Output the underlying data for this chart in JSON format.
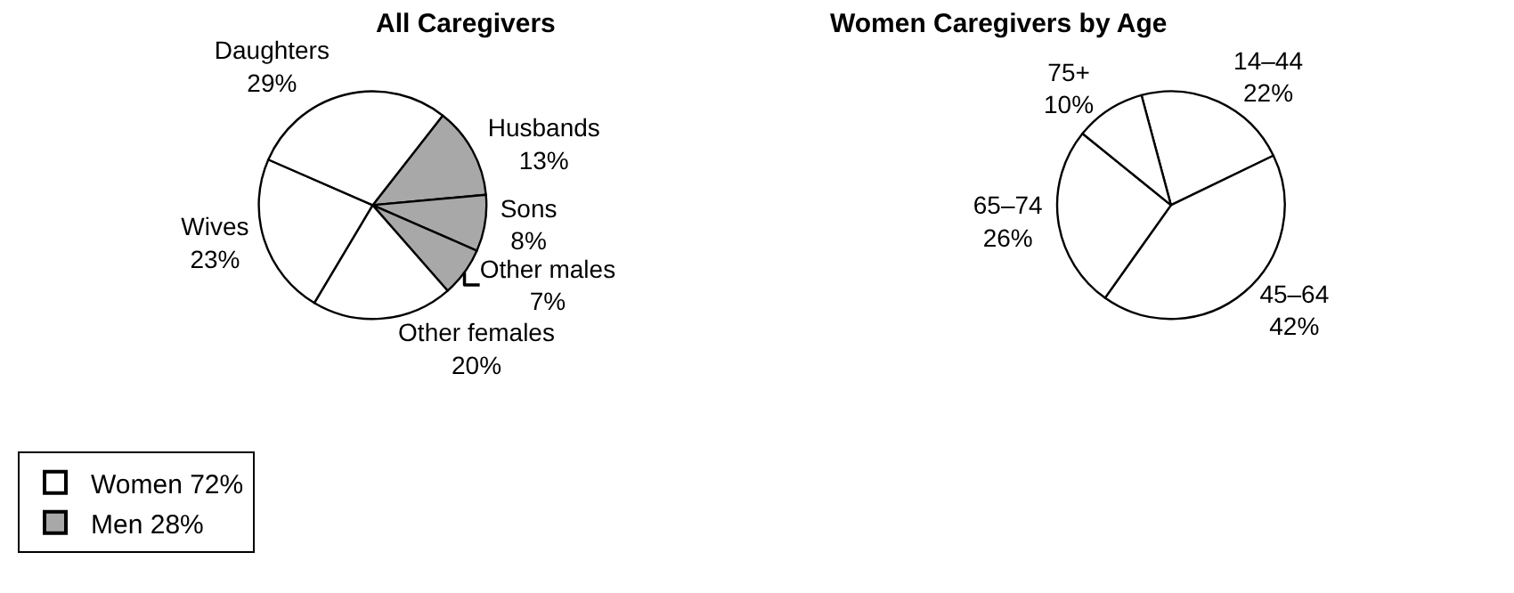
{
  "chart_data": [
    {
      "type": "pie",
      "title": "All Caregivers",
      "categories": [
        "Husbands",
        "Sons",
        "Other males",
        "Other females",
        "Wives",
        "Daughters"
      ],
      "values": [
        13,
        8,
        7,
        20,
        23,
        29
      ],
      "value_labels": [
        "13%",
        "8%",
        "7%",
        "20%",
        "23%",
        "29%"
      ],
      "colors": [
        "#a8a8a8",
        "#a8a8a8",
        "#a8a8a8",
        "#ffffff",
        "#ffffff",
        "#ffffff"
      ],
      "annotations": [
        "Women 72%",
        "Men 28%"
      ]
    },
    {
      "type": "pie",
      "title": "Women Caregivers by Age",
      "categories": [
        "14–44",
        "45–64",
        "65–74",
        "75+"
      ],
      "values": [
        22,
        42,
        26,
        10
      ],
      "value_labels": [
        "22%",
        "42%",
        "26%",
        "10%"
      ],
      "colors": [
        "#ffffff",
        "#ffffff",
        "#ffffff",
        "#ffffff"
      ]
    }
  ]
}
